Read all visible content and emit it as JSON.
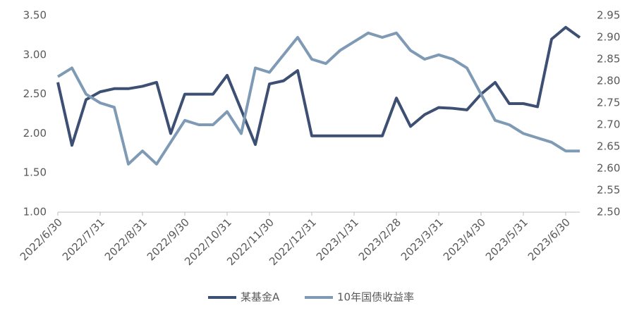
{
  "chart_data": {
    "type": "line",
    "categories": [
      "2022/6/30",
      null,
      null,
      "2022/7/31",
      null,
      null,
      "2022/8/31",
      null,
      null,
      "2022/9/30",
      null,
      null,
      "2022/10/31",
      null,
      null,
      "2022/11/30",
      null,
      null,
      "2022/12/31",
      null,
      null,
      "2023/1/31",
      null,
      null,
      "2023/2/28",
      null,
      null,
      "2023/3/31",
      null,
      null,
      "2023/4/30",
      null,
      null,
      "2023/5/31",
      null,
      null,
      "2023/6/30",
      null
    ],
    "series": [
      {
        "name": "某基金A",
        "color": "#3d4f73",
        "axis": "y",
        "values": [
          2.65,
          1.85,
          2.43,
          2.53,
          2.57,
          2.57,
          2.6,
          2.65,
          2.0,
          2.5,
          2.5,
          2.5,
          2.74,
          2.3,
          1.86,
          2.63,
          2.67,
          2.8,
          1.97,
          1.97,
          1.97,
          1.97,
          1.97,
          1.97,
          2.45,
          2.09,
          2.24,
          2.33,
          2.32,
          2.3,
          2.5,
          2.65,
          2.38,
          2.38,
          2.34,
          3.2,
          3.35,
          3.22
        ]
      },
      {
        "name": "10年国债收益率",
        "color": "#7f9ab5",
        "axis": "y2",
        "values": [
          2.81,
          2.83,
          2.77,
          2.75,
          2.74,
          2.61,
          2.64,
          2.61,
          2.66,
          2.71,
          2.7,
          2.7,
          2.73,
          2.68,
          2.83,
          2.82,
          2.86,
          2.9,
          2.85,
          2.84,
          2.87,
          2.89,
          2.91,
          2.9,
          2.91,
          2.87,
          2.85,
          2.86,
          2.85,
          2.83,
          2.77,
          2.71,
          2.7,
          2.68,
          2.67,
          2.66,
          2.64,
          2.64
        ]
      }
    ],
    "ylim": [
      1.0,
      3.5
    ],
    "yticks": [
      {
        "value": 1.0,
        "label": "1.00"
      },
      {
        "value": 1.5,
        "label": "1.50"
      },
      {
        "value": 2.0,
        "label": "2.00"
      },
      {
        "value": 2.5,
        "label": "2.50"
      },
      {
        "value": 3.0,
        "label": "3.00"
      },
      {
        "value": 3.5,
        "label": "3.50"
      }
    ],
    "y2lim": [
      2.5,
      2.95
    ],
    "y2ticks": [
      {
        "value": 2.5,
        "label": "2.50"
      },
      2.55,
      {
        "value": 2.6,
        "label": "2.60"
      },
      2.65,
      {
        "value": 2.7,
        "label": "2.70"
      },
      2.75,
      {
        "value": 2.8,
        "label": "2.80"
      },
      2.85,
      {
        "value": 2.9,
        "label": "2.90"
      },
      2.95
    ],
    "grid": false,
    "legend": "bottom"
  }
}
